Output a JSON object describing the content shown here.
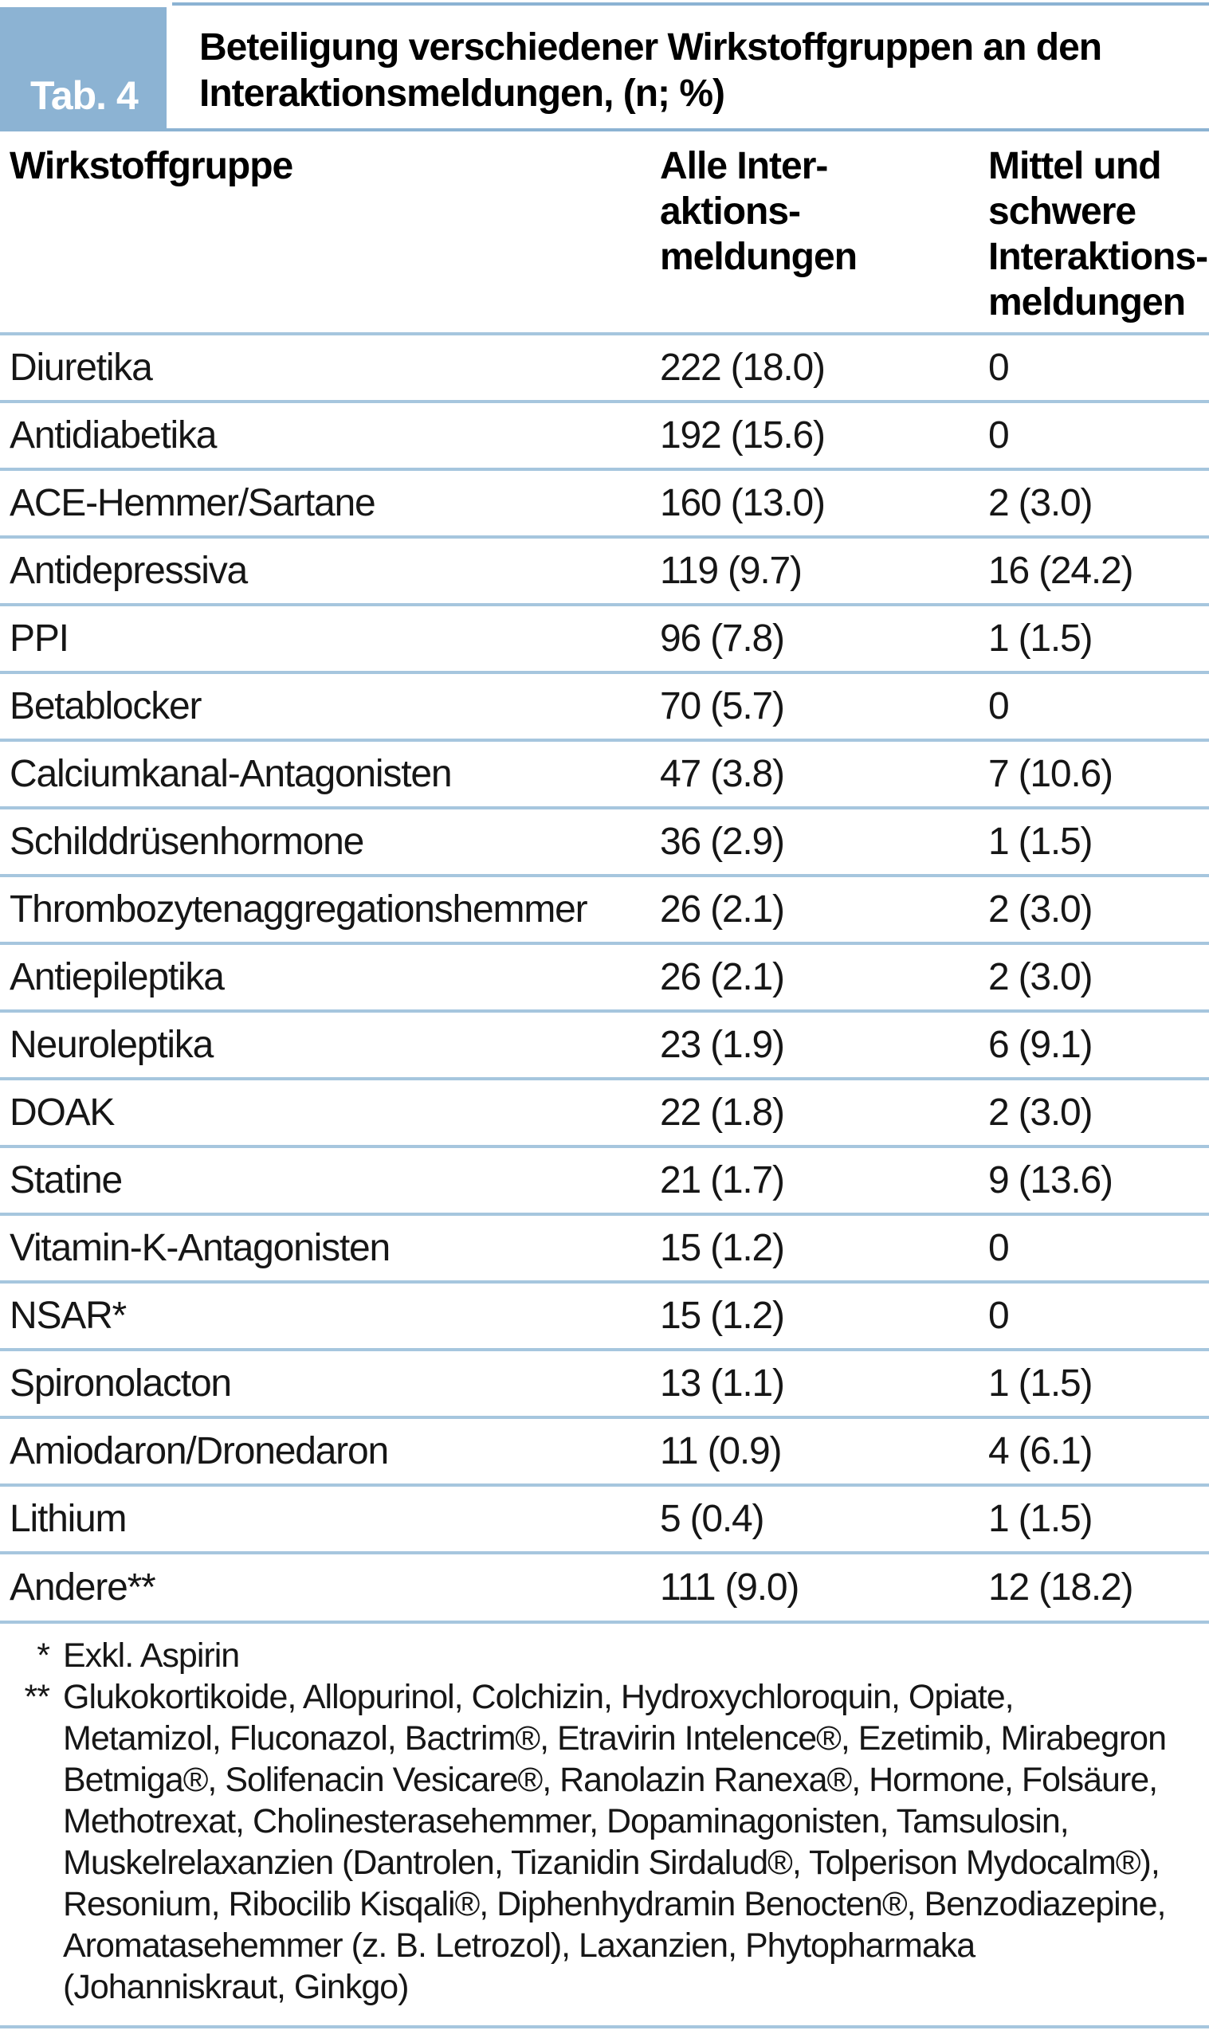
{
  "figure": {
    "badge": "Tab. 4",
    "title": "Beteiligung verschiedener Wirkstoffgruppen an den Interaktionsmeldungen, (n; %)"
  },
  "table": {
    "columns": [
      {
        "label": "Wirkstoffgruppe"
      },
      {
        "label": "Alle Inter-\naktions-\nmeldungen"
      },
      {
        "label": "Mittel und\nschwere\nInteraktions-\nmeldungen"
      }
    ],
    "rows": [
      {
        "group": "Diuretika",
        "all": "222 (18.0)",
        "severe": "0"
      },
      {
        "group": "Antidiabetika",
        "all": "192 (15.6)",
        "severe": "0"
      },
      {
        "group": "ACE-Hemmer/Sartane",
        "all": "160 (13.0)",
        "severe": "2 (3.0)"
      },
      {
        "group": "Antidepressiva",
        "all": "119 (9.7)",
        "severe": "16 (24.2)"
      },
      {
        "group": "PPI",
        "all": "96 (7.8)",
        "severe": "1 (1.5)"
      },
      {
        "group": "Betablocker",
        "all": "70 (5.7)",
        "severe": "0"
      },
      {
        "group": "Calciumkanal-Antagonisten",
        "all": "47 (3.8)",
        "severe": "7 (10.6)"
      },
      {
        "group": "Schilddrüsenhormone",
        "all": "36 (2.9)",
        "severe": "1 (1.5)"
      },
      {
        "group": "Thrombozytenaggregationshemmer",
        "all": "26 (2.1)",
        "severe": "2 (3.0)"
      },
      {
        "group": "Antiepileptika",
        "all": "26 (2.1)",
        "severe": "2 (3.0)"
      },
      {
        "group": "Neuroleptika",
        "all": "23 (1.9)",
        "severe": "6 (9.1)"
      },
      {
        "group": "DOAK",
        "all": "22 (1.8)",
        "severe": "2 (3.0)"
      },
      {
        "group": "Statine",
        "all": "21 (1.7)",
        "severe": "9 (13.6)"
      },
      {
        "group": "Vitamin-K-Antagonisten",
        "all": "15 (1.2)",
        "severe": "0"
      },
      {
        "group": "NSAR*",
        "all": "15 (1.2)",
        "severe": "0"
      },
      {
        "group": "Spironolacton",
        "all": "13 (1.1)",
        "severe": "1 (1.5)"
      },
      {
        "group": "Amiodaron/Dronedaron",
        "all": "11 (0.9)",
        "severe": "4 (6.1)"
      },
      {
        "group": "Lithium",
        "all": "5 (0.4)",
        "severe": "1 (1.5)"
      },
      {
        "group": "Andere**",
        "all": "111 (9.0)",
        "severe": "12 (18.2)"
      }
    ]
  },
  "footnotes": [
    {
      "marker": "*",
      "text": "Exkl. Aspirin"
    },
    {
      "marker": "**",
      "text": "Glukokortikoide, Allopurinol, Colchizin, Hydroxychloroquin, Opiate, Metamizol, Fluconazol, Bactrim®, Etravirin Intelence®, Ezetimib, Mirabegron Betmiga®, Solifenacin Vesicare®, Ranolazin Ranexa®, Hormone, Folsäure, Methotrexat, Cholinesterasehemmer, Dopaminagonisten, Tamsulosin, Muskelrelaxanzien (Dantrolen, Tizanidin Sirdalud®, Tolperison Mydocalm®), Resonium, Ribocilib Kisqali®, Diphenhydramin Benocten®, Benzodiazepine, Aromatasehemmer (z. B. Letrozol), Laxanzien, Phytopharmaka (Johanniskraut, Ginkgo)"
    }
  ],
  "colors": {
    "accent_blue": "#8cb3d3",
    "separator_blue": "#a6c6de"
  }
}
